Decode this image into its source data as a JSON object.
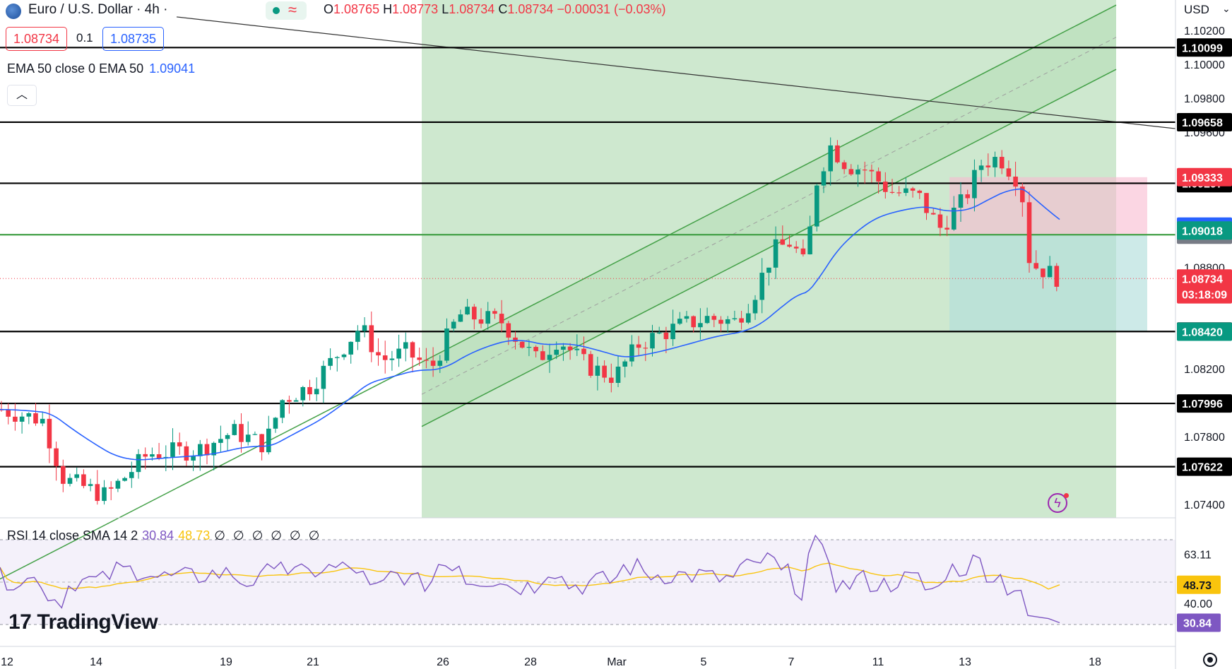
{
  "header": {
    "symbol_title": "Euro / U.S. Dollar · 4h ·",
    "open_label": "O",
    "open": "1.08765",
    "high_label": "H",
    "high": "1.08773",
    "low_label": "L",
    "low": "1.08734",
    "close_label": "C",
    "close": "1.08734",
    "change": "−0.00031 (−0.03%)",
    "bid": "1.08734",
    "spread": "0.1",
    "ask": "1.08735",
    "currency": "USD",
    "collapse_icon": "chevron-up-icon",
    "currency_icon": "chevron-down-icon"
  },
  "ema_legend": {
    "label": "EMA 50 close 0 EMA 50",
    "value": "1.09041"
  },
  "rsi_legend": {
    "label": "RSI 14 close SMA 14 2",
    "rsi": "30.84",
    "sma": "48.73",
    "extra": "∅ ∅ ∅ ∅ ∅ ∅"
  },
  "branding": {
    "logo_text": "TradingView",
    "logo_mark": "17"
  },
  "colors": {
    "up": "#089981",
    "down": "#f23645",
    "ema": "#2962ff",
    "rsi": "#7e57c2",
    "rsi_sma": "#f9c40d",
    "channel_fill": "#a5d6a7",
    "channel_line": "#43a047"
  },
  "chart_data": {
    "type": "candlestick",
    "instrument": "EURUSD",
    "timeframe": "4h",
    "y_range": [
      1.0732,
      1.1038
    ],
    "x_tick_labels": [
      "12",
      "14",
      "19",
      "21",
      "26",
      "28",
      "Mar",
      "5",
      "7",
      "11",
      "13",
      "18"
    ],
    "price_axis_ticks": [
      "1.10200",
      "1.10000",
      "1.09800",
      "1.09600",
      "1.08800",
      "1.08200",
      "1.07800",
      "1.07400"
    ],
    "horizontal_levels": [
      {
        "price": 1.10099,
        "label": "1.10099",
        "color": "#000000"
      },
      {
        "price": 1.09658,
        "label": "1.09658",
        "color": "#000000"
      },
      {
        "price": 1.09297,
        "label": "1.09297",
        "color": "#000000"
      },
      {
        "price": 1.08993,
        "label": "1.08993",
        "color": "#43a047"
      },
      {
        "price": 1.08421,
        "label": "1.08421",
        "color": "#000000"
      },
      {
        "price": 1.07996,
        "label": "1.07996",
        "color": "#000000"
      },
      {
        "price": 1.07622,
        "label": "1.07622",
        "color": "#000000"
      }
    ],
    "price_badges": [
      {
        "label": "1.09333",
        "price": 1.09333,
        "color": "#f23645"
      },
      {
        "label": "1.09041",
        "price": 1.09041,
        "color": "#2962ff"
      },
      {
        "label": "1.09018",
        "price": 1.09018,
        "color": "#089981"
      },
      {
        "label": "1.08734",
        "price": 1.08734,
        "color": "#f23645"
      },
      {
        "label": "03:18:09",
        "price": 1.08641,
        "color": "#f23645"
      },
      {
        "label": "1.08420",
        "price": 1.0842,
        "color": "#089981"
      }
    ],
    "current_price": 1.08734,
    "ema50_last": 1.09041,
    "position_tool": {
      "entry": 1.08993,
      "stop": 1.09333,
      "target": 1.0842
    },
    "rsi": {
      "value": 30.84,
      "sma": 48.73,
      "ticks": [
        "63.11",
        "50.72",
        "40.00"
      ],
      "upper": 70,
      "lower": 30
    }
  }
}
